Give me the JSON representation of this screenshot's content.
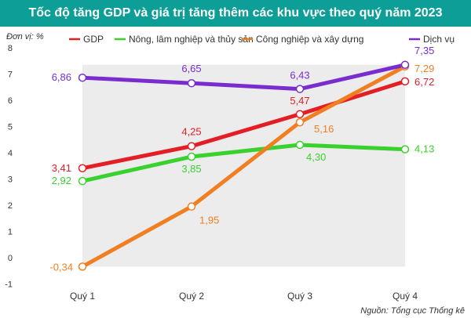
{
  "chart_data": {
    "type": "line",
    "title": "Tốc độ tăng GDP và giá trị tăng thêm các khu vực theo quý năm 2023",
    "unit_label": "Đơn vị: %",
    "source": "Nguồn: Tổng cục Thống kê",
    "categories": [
      "Quý 1",
      "Quý 2",
      "Quý 3",
      "Quý 4"
    ],
    "ylim": [
      -1,
      8
    ],
    "yticks": [
      "-1",
      "0",
      "1",
      "2",
      "3",
      "4",
      "5",
      "6",
      "7",
      "8"
    ],
    "legend_position": "top",
    "grid": false,
    "series": [
      {
        "name": "GDP",
        "color": "#e31e24",
        "values": [
          3.41,
          4.25,
          5.47,
          6.72
        ],
        "labels": [
          "3,41",
          "4,25",
          "5,47",
          "6,72"
        ]
      },
      {
        "name": "Nông, lâm nghiệp và thủy sản",
        "color": "#39d12e",
        "values": [
          2.92,
          3.85,
          4.3,
          4.13
        ],
        "labels": [
          "2,92",
          "3,85",
          "4,30",
          "4,13"
        ]
      },
      {
        "name": "Công nghiệp và xây dựng",
        "color": "#f07f22",
        "values": [
          -0.34,
          1.95,
          5.16,
          7.29
        ],
        "labels": [
          "-0,34",
          "1,95",
          "5,16",
          "7,29"
        ]
      },
      {
        "name": "Dịch vụ",
        "color": "#7a2dcf",
        "values": [
          6.86,
          6.65,
          6.43,
          7.35
        ],
        "labels": [
          "6,86",
          "6,65",
          "6,43",
          "7,35"
        ]
      }
    ]
  }
}
